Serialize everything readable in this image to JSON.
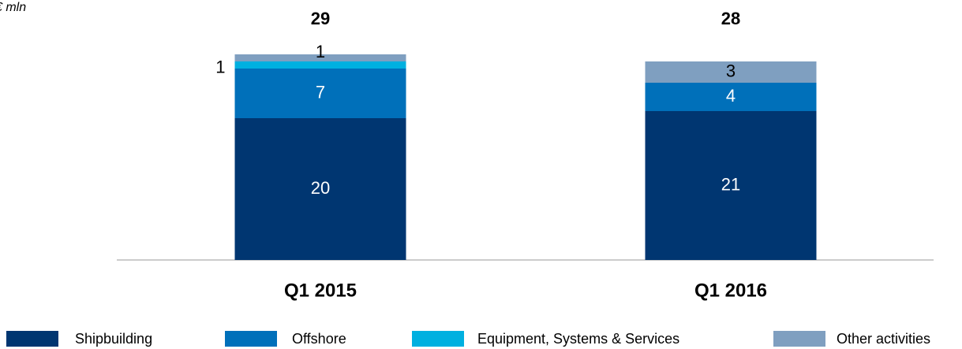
{
  "chart_data": {
    "type": "stacked_bar",
    "subtitle": "€ mln",
    "categories": [
      "Q1 2015",
      "Q1 2016"
    ],
    "totals": [
      29,
      28
    ],
    "series": [
      {
        "name": "Shipbuilding",
        "color": "#003671",
        "values": [
          20,
          21
        ]
      },
      {
        "name": "Offshore",
        "color": "#0070ba",
        "values": [
          7,
          4
        ]
      },
      {
        "name": "Equipment, Systems & Services",
        "color": "#00b0e0",
        "values": [
          1,
          null
        ]
      },
      {
        "name": "Other activities",
        "color": "#7f9fc0",
        "values": [
          1,
          3
        ]
      }
    ]
  }
}
